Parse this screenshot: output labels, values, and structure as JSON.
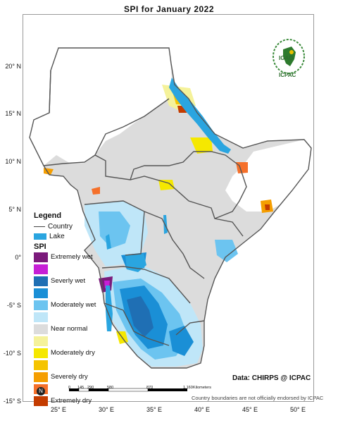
{
  "title": "SPI   for   January 2022",
  "latitude_labels": [
    "20° N",
    "15° N",
    "10° N",
    "5° N",
    "0°",
    "-5° S",
    "-10° S",
    "-15° S"
  ],
  "longitude_labels": [
    "25° E",
    "30° E",
    "35° E",
    "40° E",
    "45° E",
    "50° E"
  ],
  "legend": {
    "heading": "Legend",
    "country_label": "Country",
    "lake_label": "Lake",
    "spi_heading": "SPI",
    "classes": [
      {
        "label": "Extremely wet",
        "color": "#7b1a7b"
      },
      {
        "label": "",
        "color": "#c71fd6"
      },
      {
        "label": "Severly wet",
        "color": "#1f6fb4"
      },
      {
        "label": "",
        "color": "#1a8fd6"
      },
      {
        "label": "Moderately wet",
        "color": "#6cc4f0"
      },
      {
        "label": "",
        "color": "#bfe6f8"
      },
      {
        "label": "Near normal",
        "color": "#dcdcdc"
      },
      {
        "label": "",
        "color": "#f5f29a"
      },
      {
        "label": "Moderately dry",
        "color": "#f5e800"
      },
      {
        "label": "",
        "color": "#f5c400"
      },
      {
        "label": "Severely dry",
        "color": "#f59e00"
      },
      {
        "label": "",
        "color": "#f5702a"
      },
      {
        "label": "Extremely dry",
        "color": "#c43c00"
      }
    ]
  },
  "lake_color": "#2aa5e0",
  "data_credit": "Data: CHIRPS @ ICPAC",
  "scale_bar": {
    "ticks": [
      "0",
      "145",
      "290",
      "580",
      "870",
      "1,160"
    ],
    "unit": "Kilometers"
  },
  "disclaimer": "Country boundaries are not officially endorsed by ICPAC",
  "logo": {
    "top_text": "IGAD",
    "bottom_text": "ICPAC"
  },
  "north_arrow": "N"
}
